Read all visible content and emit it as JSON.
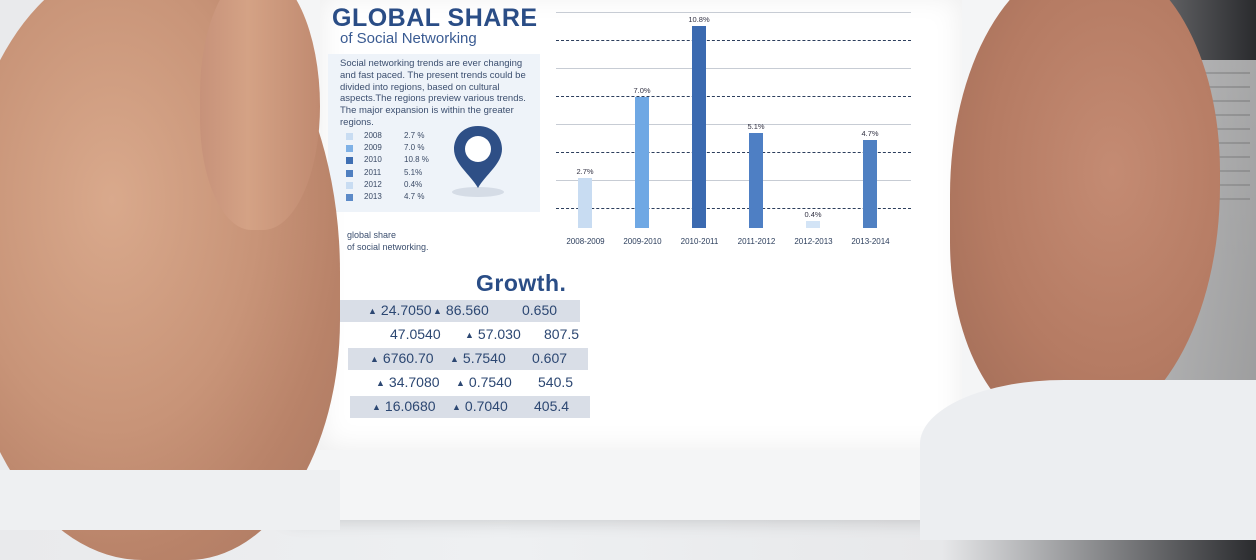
{
  "infographic": {
    "title": "GLOBAL SHARE",
    "subtitle": "of Social Networking",
    "description": "Social networking trends are ever changing and fast paced. The present trends could be divided into regions, based on cultural aspects.The regions preview various trends. The major expansion is within the greater regions.",
    "caption_line1": "global share",
    "caption_line2": "of social networking.",
    "legend": [
      {
        "year": "2008",
        "value": "2.7 %",
        "color": "#c8dcf2"
      },
      {
        "year": "2009",
        "value": "7.0 %",
        "color": "#7fb1e6"
      },
      {
        "year": "2010",
        "value": "10.8 %",
        "color": "#3f6fb3"
      },
      {
        "year": "2011",
        "value": "5.1%",
        "color": "#4f7fc0"
      },
      {
        "year": "2012",
        "value": "0.4%",
        "color": "#c8dcf2"
      },
      {
        "year": "2013",
        "value": "4.7 %",
        "color": "#5c8ac8"
      }
    ],
    "growth_title": "Growth.",
    "growth_rows": [
      [
        "24.7050",
        "86.560",
        "0.650"
      ],
      [
        "47.0540",
        "57.030",
        "807.5"
      ],
      [
        "6760.70",
        "5.7540",
        "0.607"
      ],
      [
        "34.7080",
        "0.7540",
        "540.5"
      ],
      [
        "16.0680",
        "0.7040",
        "405.4"
      ]
    ],
    "triangle_glyph": "▲"
  },
  "chart_data": {
    "type": "bar",
    "categories": [
      "2008-2009",
      "2009-2010",
      "2010-2011",
      "2011-2012",
      "2012-2013",
      "2013-2014"
    ],
    "values": [
      2.7,
      7.0,
      10.8,
      5.1,
      0.4,
      4.7
    ],
    "data_labels": [
      "2.7%",
      "7.0%",
      "10.8%",
      "5.1%",
      "0.4%",
      "4.7%"
    ],
    "colors": [
      "#c8dcf2",
      "#6fa8e4",
      "#3b6ab0",
      "#4e7fc4",
      "#d3e4f6",
      "#4f80c2"
    ],
    "ylim": [
      0,
      11.5
    ]
  }
}
